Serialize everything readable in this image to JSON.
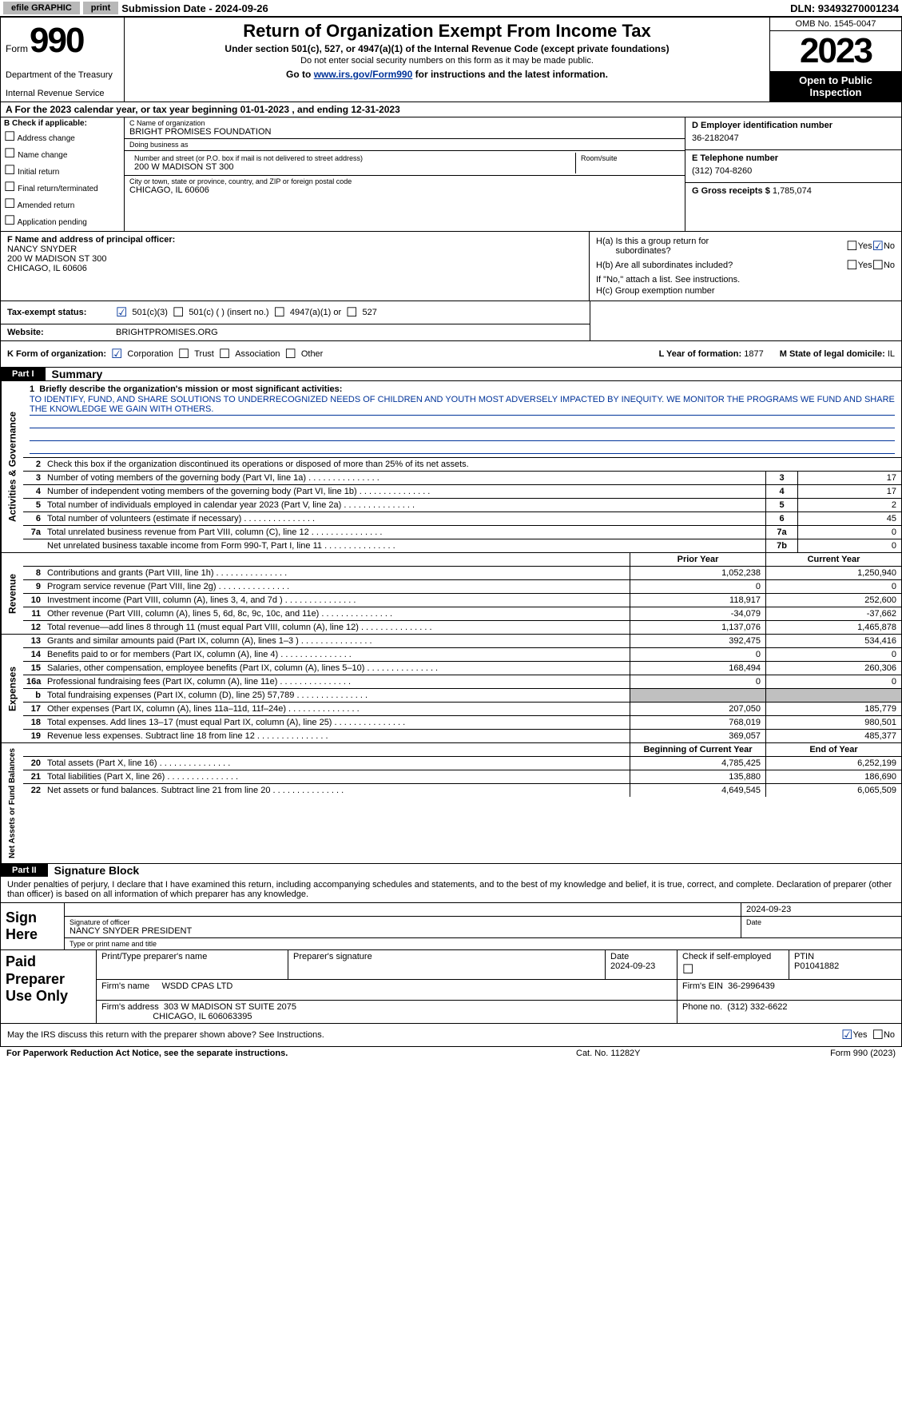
{
  "topbar": {
    "efile": "efile GRAPHIC",
    "print": "print",
    "submission": "Submission Date - 2024-09-26",
    "dln": "DLN: 93493270001234"
  },
  "header": {
    "form_word": "Form",
    "form_num": "990",
    "dept": "Department of the Treasury",
    "irs": "Internal Revenue Service",
    "title": "Return of Organization Exempt From Income Tax",
    "subtitle": "Under section 501(c), 527, or 4947(a)(1) of the Internal Revenue Code (except private foundations)",
    "note": "Do not enter social security numbers on this form as it may be made public.",
    "goto": "Go to ",
    "goto_link": "www.irs.gov/Form990",
    "goto_after": " for instructions and the latest information.",
    "omb": "OMB No. 1545-0047",
    "year": "2023",
    "inspect": "Open to Public Inspection"
  },
  "row_a": "A For the 2023 calendar year, or tax year beginning 01-01-2023   , and ending 12-31-2023",
  "section_b": {
    "hdr": "B Check if applicable:",
    "items": [
      "Address change",
      "Name change",
      "Initial return",
      "Final return/terminated",
      "Amended return",
      "Application pending"
    ]
  },
  "section_c": {
    "name_lbl": "C Name of organization",
    "name": "BRIGHT PROMISES FOUNDATION",
    "dba_lbl": "Doing business as",
    "dba": "",
    "street_lbl": "Number and street (or P.O. box if mail is not delivered to street address)",
    "street": "200 W MADISON ST 300",
    "suite_lbl": "Room/suite",
    "city_lbl": "City or town, state or province, country, and ZIP or foreign postal code",
    "city": "CHICAGO, IL  60606"
  },
  "section_d": {
    "lbl": "D Employer identification number",
    "val": "36-2182047"
  },
  "section_e": {
    "lbl": "E Telephone number",
    "val": "(312) 704-8260"
  },
  "section_g": {
    "lbl": "G Gross receipts $",
    "val": "1,785,074"
  },
  "section_f": {
    "lbl": "F  Name and address of principal officer:",
    "name": "NANCY SNYDER",
    "street": "200 W MADISON ST 300",
    "city": "CHICAGO, IL  60606"
  },
  "section_h": {
    "a_lbl": "H(a)  Is this a group return for",
    "a_lbl2": "subordinates?",
    "b_lbl": "H(b)  Are all subordinates included?",
    "b_note": "If \"No,\" attach a list. See instructions.",
    "c_lbl": "H(c)  Group exemption number"
  },
  "row_i": {
    "lbl": "Tax-exempt status:",
    "opts": [
      "501(c)(3)",
      "501(c) (  ) (insert no.)",
      "4947(a)(1) or",
      "527"
    ]
  },
  "row_j": {
    "lbl": "Website:",
    "val": "BRIGHTPROMISES.ORG"
  },
  "row_k": {
    "lbl": "K Form of organization:",
    "opts": [
      "Corporation",
      "Trust",
      "Association",
      "Other"
    ],
    "l_lbl": "L Year of formation:",
    "l_val": "1877",
    "m_lbl": "M State of legal domicile:",
    "m_val": "IL"
  },
  "parts": {
    "p1": "Part I",
    "p1_title": "Summary",
    "p2": "Part II",
    "p2_title": "Signature Block"
  },
  "summary": {
    "line1_lbl": "Briefly describe the organization's mission or most significant activities:",
    "line1_txt": "TO IDENTIFY, FUND, AND SHARE SOLUTIONS TO UNDERRECOGNIZED NEEDS OF CHILDREN AND YOUTH MOST ADVERSELY IMPACTED BY INEQUITY. WE MONITOR THE PROGRAMS WE FUND AND SHARE THE KNOWLEDGE WE GAIN WITH OTHERS.",
    "line2": "Check this box      if the organization discontinued its operations or disposed of more than 25% of its net assets.",
    "gov_rows": [
      {
        "n": "3",
        "desc": "Number of voting members of the governing body (Part VI, line 1a)",
        "box": "3",
        "val": "17"
      },
      {
        "n": "4",
        "desc": "Number of independent voting members of the governing body (Part VI, line 1b)",
        "box": "4",
        "val": "17"
      },
      {
        "n": "5",
        "desc": "Total number of individuals employed in calendar year 2023 (Part V, line 2a)",
        "box": "5",
        "val": "2"
      },
      {
        "n": "6",
        "desc": "Total number of volunteers (estimate if necessary)",
        "box": "6",
        "val": "45"
      },
      {
        "n": "7a",
        "desc": "Total unrelated business revenue from Part VIII, column (C), line 12",
        "box": "7a",
        "val": "0"
      },
      {
        "n": "",
        "desc": "Net unrelated business taxable income from Form 990-T, Part I, line 11",
        "box": "7b",
        "val": "0"
      }
    ],
    "prior_hdr": "Prior Year",
    "curr_hdr": "Current Year",
    "rev_rows": [
      {
        "n": "8",
        "desc": "Contributions and grants (Part VIII, line 1h)",
        "p": "1,052,238",
        "c": "1,250,940"
      },
      {
        "n": "9",
        "desc": "Program service revenue (Part VIII, line 2g)",
        "p": "0",
        "c": "0"
      },
      {
        "n": "10",
        "desc": "Investment income (Part VIII, column (A), lines 3, 4, and 7d )",
        "p": "118,917",
        "c": "252,600"
      },
      {
        "n": "11",
        "desc": "Other revenue (Part VIII, column (A), lines 5, 6d, 8c, 9c, 10c, and 11e)",
        "p": "-34,079",
        "c": "-37,662"
      },
      {
        "n": "12",
        "desc": "Total revenue—add lines 8 through 11 (must equal Part VIII, column (A), line 12)",
        "p": "1,137,076",
        "c": "1,465,878"
      }
    ],
    "exp_rows": [
      {
        "n": "13",
        "desc": "Grants and similar amounts paid (Part IX, column (A), lines 1–3 )",
        "p": "392,475",
        "c": "534,416"
      },
      {
        "n": "14",
        "desc": "Benefits paid to or for members (Part IX, column (A), line 4)",
        "p": "0",
        "c": "0"
      },
      {
        "n": "15",
        "desc": "Salaries, other compensation, employee benefits (Part IX, column (A), lines 5–10)",
        "p": "168,494",
        "c": "260,306"
      },
      {
        "n": "16a",
        "desc": "Professional fundraising fees (Part IX, column (A), line 11e)",
        "p": "0",
        "c": "0"
      },
      {
        "n": "b",
        "desc": "Total fundraising expenses (Part IX, column (D), line 25) 57,789",
        "p": "",
        "c": "",
        "grey": true
      },
      {
        "n": "17",
        "desc": "Other expenses (Part IX, column (A), lines 11a–11d, 11f–24e)",
        "p": "207,050",
        "c": "185,779"
      },
      {
        "n": "18",
        "desc": "Total expenses. Add lines 13–17 (must equal Part IX, column (A), line 25)",
        "p": "768,019",
        "c": "980,501"
      },
      {
        "n": "19",
        "desc": "Revenue less expenses. Subtract line 18 from line 12",
        "p": "369,057",
        "c": "485,377"
      }
    ],
    "net_hdr_p": "Beginning of Current Year",
    "net_hdr_c": "End of Year",
    "net_rows": [
      {
        "n": "20",
        "desc": "Total assets (Part X, line 16)",
        "p": "4,785,425",
        "c": "6,252,199"
      },
      {
        "n": "21",
        "desc": "Total liabilities (Part X, line 26)",
        "p": "135,880",
        "c": "186,690"
      },
      {
        "n": "22",
        "desc": "Net assets or fund balances. Subtract line 21 from line 20",
        "p": "4,649,545",
        "c": "6,065,509"
      }
    ]
  },
  "sides": {
    "gov": "Activities & Governance",
    "rev": "Revenue",
    "exp": "Expenses",
    "net": "Net Assets or Fund Balances"
  },
  "sig": {
    "text": "Under penalties of perjury, I declare that I have examined this return, including accompanying schedules and statements, and to the best of my knowledge and belief, it is true, correct, and complete. Declaration of preparer (other than officer) is based on all information of which preparer has any knowledge.",
    "sign_here": "Sign Here",
    "sig_officer_lbl": "Signature of officer",
    "officer": "NANCY SNYDER  PRESIDENT",
    "type_lbl": "Type or print name and title",
    "date_lbl": "Date",
    "date": "2024-09-23"
  },
  "paid": {
    "lbl": "Paid Preparer Use Only",
    "name_lbl": "Print/Type preparer's name",
    "sig_lbl": "Preparer's signature",
    "pdate_lbl": "Date",
    "pdate": "2024-09-23",
    "check_lbl": "Check       if self-employed",
    "ptin_lbl": "PTIN",
    "ptin": "P01041882",
    "firm_name_lbl": "Firm's name",
    "firm_name": "WSDD CPAS LTD",
    "firm_ein_lbl": "Firm's EIN",
    "firm_ein": "36-2996439",
    "firm_addr_lbl": "Firm's address",
    "firm_addr": "303 W MADISON ST SUITE 2075",
    "firm_city": "CHICAGO, IL  606063395",
    "phone_lbl": "Phone no.",
    "phone": "(312) 332-6622"
  },
  "irs_discuss": "May the IRS discuss this return with the preparer shown above? See Instructions.",
  "footer": {
    "left": "For Paperwork Reduction Act Notice, see the separate instructions.",
    "mid": "Cat. No. 11282Y",
    "right": "Form 990 (2023)"
  },
  "yes": "Yes",
  "no": "No"
}
